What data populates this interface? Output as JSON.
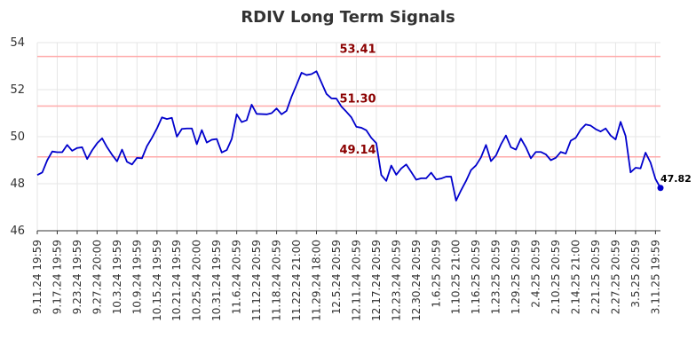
{
  "chart_data": {
    "type": "line",
    "title": "RDIV Long Term Signals",
    "xlabel": "",
    "ylabel": "",
    "ylim": [
      46,
      54
    ],
    "yticks": [
      46,
      48,
      50,
      52,
      54
    ],
    "grid": true,
    "xtick_labels": [
      "9.11.24 19:59",
      "9.17.24 19:59",
      "9.23.24 19:59",
      "9.27.24 20:00",
      "10.3.24 19:59",
      "10.9.24 19:59",
      "10.15.24 19:59",
      "10.21.24 19:59",
      "10.25.24 20:00",
      "10.31.24 19:59",
      "11.6.24 20:59",
      "11.12.24 20:59",
      "11.18.24 20:59",
      "11.22.24 21:00",
      "11.29.24 18:00",
      "12.5.24 20:59",
      "12.11.24 20:59",
      "12.17.24 20:59",
      "12.23.24 20:59",
      "12.30.24 20:59",
      "1.6.25 20:59",
      "1.10.25 21:00",
      "1.16.25 20:59",
      "1.23.25 20:59",
      "1.29.25 20:59",
      "2.4.25 20:59",
      "2.10.25 20:59",
      "2.14.25 21:00",
      "2.21.25 20:59",
      "2.27.25 20:59",
      "3.5.25 20:59",
      "3.11.25 19:59"
    ],
    "xtick_index": [
      0,
      4,
      8,
      12,
      16,
      20,
      24,
      28,
      32,
      36,
      40,
      44,
      48,
      52,
      56,
      60,
      64,
      68,
      72,
      76,
      80,
      84,
      88,
      92,
      96,
      100,
      104,
      108,
      112,
      116,
      120,
      124
    ],
    "series": [
      {
        "color": "#0000cc",
        "values": [
          48.37,
          48.48,
          49.0,
          49.37,
          49.34,
          49.34,
          49.65,
          49.4,
          49.52,
          49.55,
          49.05,
          49.42,
          49.72,
          49.93,
          49.55,
          49.23,
          48.95,
          49.45,
          48.93,
          48.82,
          49.1,
          49.08,
          49.6,
          49.95,
          50.35,
          50.82,
          50.75,
          50.8,
          50.0,
          50.33,
          50.35,
          50.35,
          49.68,
          50.28,
          49.75,
          49.87,
          49.9,
          49.33,
          49.43,
          49.9,
          50.95,
          50.62,
          50.7,
          51.36,
          50.97,
          50.96,
          50.95,
          51.0,
          51.2,
          50.95,
          51.1,
          51.7,
          52.2,
          52.72,
          52.62,
          52.66,
          52.78,
          52.3,
          51.82,
          51.63,
          51.62,
          51.28,
          51.06,
          50.82,
          50.42,
          50.38,
          50.27,
          49.95,
          49.72,
          48.37,
          48.12,
          48.77,
          48.38,
          48.65,
          48.82,
          48.5,
          48.17,
          48.23,
          48.23,
          48.47,
          48.18,
          48.22,
          48.3,
          48.3,
          47.28,
          47.72,
          48.12,
          48.58,
          48.78,
          49.12,
          49.65,
          48.96,
          49.2,
          49.67,
          50.05,
          49.55,
          49.45,
          49.92,
          49.55,
          49.08,
          49.35,
          49.35,
          49.25,
          49.0,
          49.1,
          49.35,
          49.28,
          49.83,
          49.95,
          50.3,
          50.52,
          50.47,
          50.32,
          50.22,
          50.35,
          50.05,
          49.88,
          50.63,
          50.03,
          48.48,
          48.68,
          48.65,
          49.32,
          48.9,
          48.2,
          47.82
        ]
      }
    ],
    "reference_lines": [
      {
        "value": 53.41,
        "label": "53.41",
        "color": "#ffaaaa",
        "label_color": "#8b0000"
      },
      {
        "value": 51.3,
        "label": "51.30",
        "color": "#ffaaaa",
        "label_color": "#8b0000"
      },
      {
        "value": 49.14,
        "label": "49.14",
        "color": "#ffaaaa",
        "label_color": "#8b0000"
      }
    ],
    "last_value_label": "47.82",
    "last_point_color": "#0000cc"
  }
}
